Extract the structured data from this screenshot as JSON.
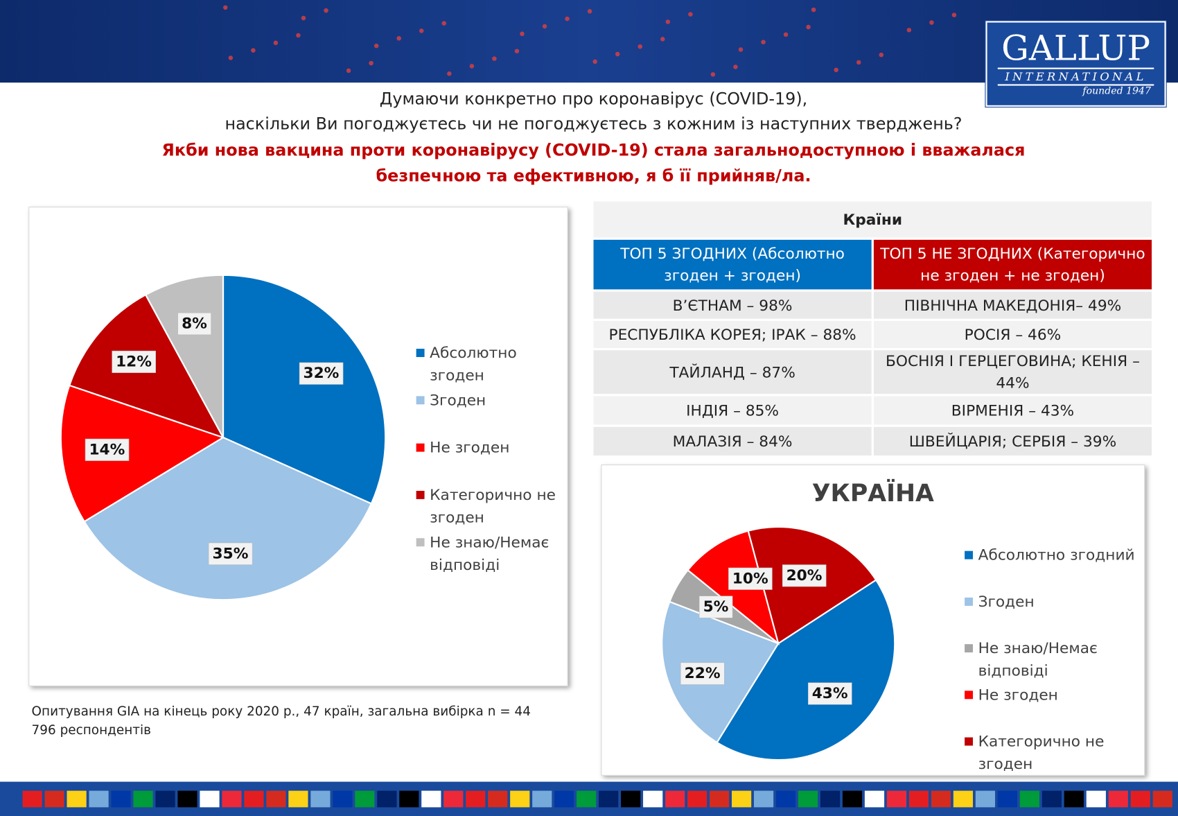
{
  "header": {
    "title_lines": [
      "Думаючи конкретно про коронавірус (COVID-19),",
      "наскільки Ви погоджуєтесь чи не погоджуєтесь з кожним із наступних тверджень?"
    ],
    "subtitle_lines": [
      "Якби нова вакцина проти коронавірусу (COVID-19) стала загальнодоступною і вважалася",
      "безпечною та ефективною,  я б її прийняв/ла."
    ]
  },
  "logo": {
    "name": "GALLUP",
    "subtitle": "INTERNATIONAL",
    "founded": "founded 1947"
  },
  "chart_data": [
    {
      "type": "pie",
      "categories": [
        "Абсолютно згоден",
        "Згоден",
        "Не згоден",
        "Категорично не згоден",
        "Не знаю/Немає відповіді"
      ],
      "values": [
        32,
        35,
        14,
        12,
        8
      ],
      "value_labels": [
        "32%",
        "35%",
        "14%",
        "12%",
        "8%"
      ],
      "colors": [
        "#0070c0",
        "#9dc3e6",
        "#ff0000",
        "#c00000",
        "#bfbfbf"
      ]
    },
    {
      "type": "pie",
      "title": "УКРАЇНА",
      "categories": [
        "Абсолютно згодний",
        "Згоден",
        "Не знаю/Немає відповіді",
        "Не згоден",
        "Категорично не згоден"
      ],
      "values": [
        43,
        22,
        5,
        10,
        20
      ],
      "value_labels": [
        "43%",
        "22%",
        "5%",
        "10%",
        "20%"
      ],
      "colors": [
        "#0070c0",
        "#9dc3e6",
        "#a6a6a6",
        "#ff0000",
        "#c00000"
      ]
    }
  ],
  "table": {
    "title": "Країни",
    "columns": [
      "ТОП 5 ЗГОДНИХ (Абсолютно згоден + згоден)",
      "ТОП 5 НЕ ЗГОДНИХ (Категорично не згоден + не згоден)"
    ],
    "rows": [
      [
        "В’ЄТНАМ – 98%",
        "ПІВНІЧНА МАКЕДОНІЯ– 49%"
      ],
      [
        "РЕСПУБЛІКА КОРЕЯ; ІРАК – 88%",
        "РОСІЯ – 46%"
      ],
      [
        "ТАЙЛАНД – 87%",
        "БОСНІЯ І ГЕРЦЕГОВИНА; КЕНІЯ – 44%"
      ],
      [
        "ІНДІЯ – 85%",
        "ВІРМЕНІЯ – 43%"
      ],
      [
        "МАЛАЗІЯ – 84%",
        "ШВЕЙЦАРІЯ; СЕРБІЯ – 39%"
      ]
    ]
  },
  "footnote": "Опитування GIA на кінець року 2020 р., 47 країн, загальна вибірка n = 44 796 респондентів"
}
